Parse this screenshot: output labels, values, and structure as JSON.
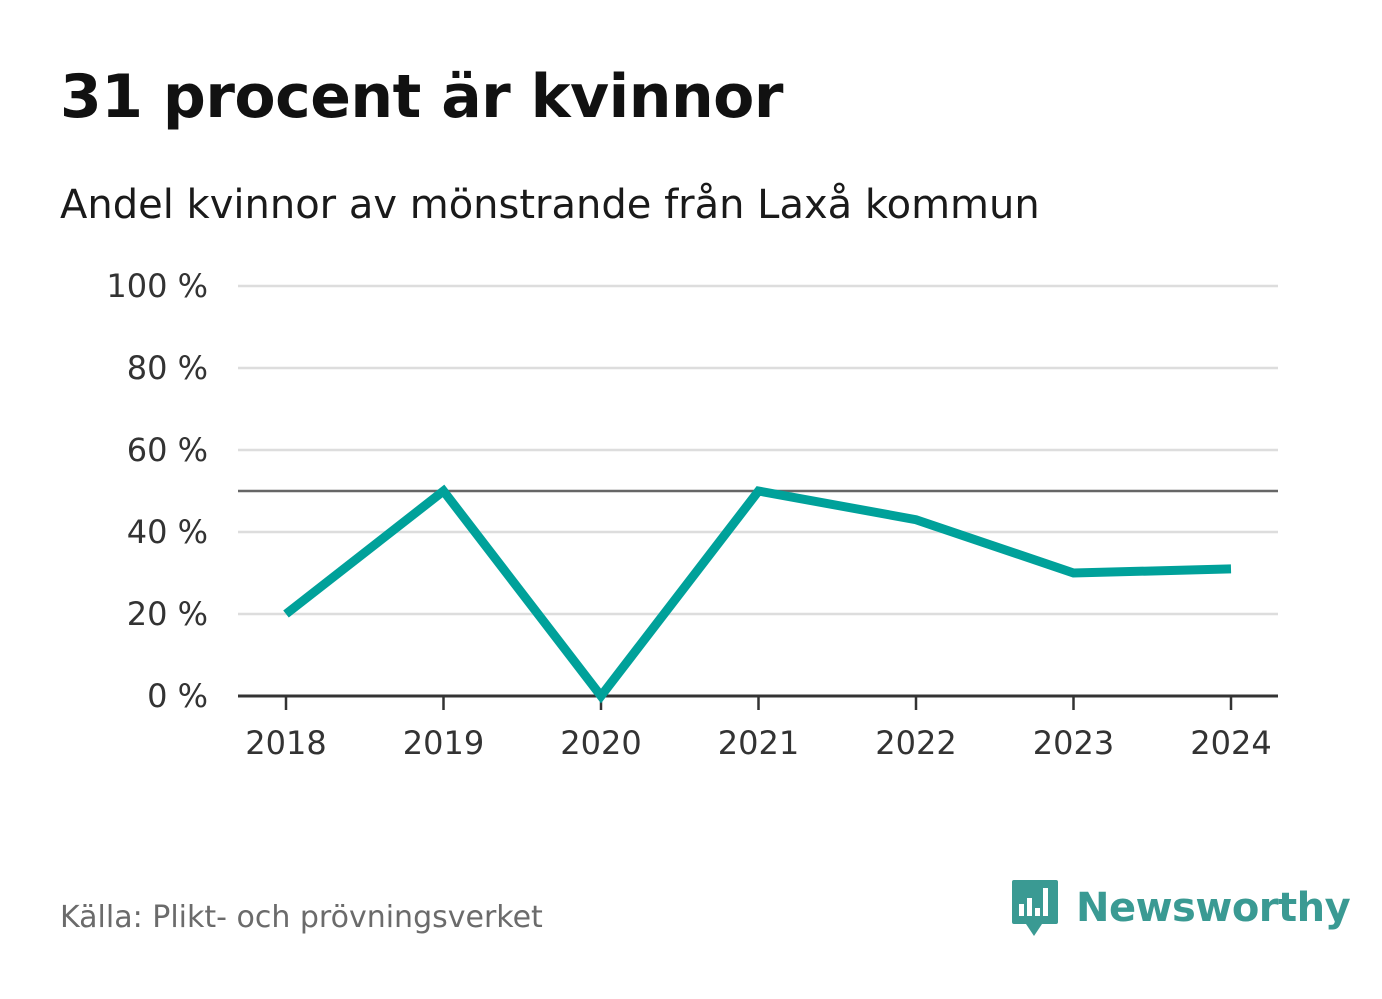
{
  "title": "31 procent är kvinnor",
  "subtitle": "Andel kvinnor av mönstrande från Laxå kommun",
  "source": "Källa: Plikt- och prövningsverket",
  "brand": {
    "name": "Newsworthy",
    "icon": "newsworthy-logo-icon",
    "color": "#3a9a93"
  },
  "colors": {
    "line": "#00a19a",
    "grid": "#dddddd",
    "reference": "#666666",
    "axis": "#333333"
  },
  "chart_data": {
    "type": "line",
    "title": "31 procent är kvinnor",
    "subtitle": "Andel kvinnor av mönstrande från Laxå kommun",
    "xlabel": "",
    "ylabel": "",
    "x": [
      "2018",
      "2019",
      "2020",
      "2021",
      "2022",
      "2023",
      "2024"
    ],
    "series": [
      {
        "name": "Andel kvinnor",
        "values": [
          20,
          50,
          0,
          50,
          43,
          30,
          31
        ]
      }
    ],
    "ylim": [
      0,
      100
    ],
    "yticks": [
      0,
      20,
      40,
      60,
      80,
      100
    ],
    "ytick_labels": [
      "0 %",
      "20 %",
      "40 %",
      "60 %",
      "80 %",
      "100 %"
    ],
    "reference_line": 50,
    "grid": true
  }
}
